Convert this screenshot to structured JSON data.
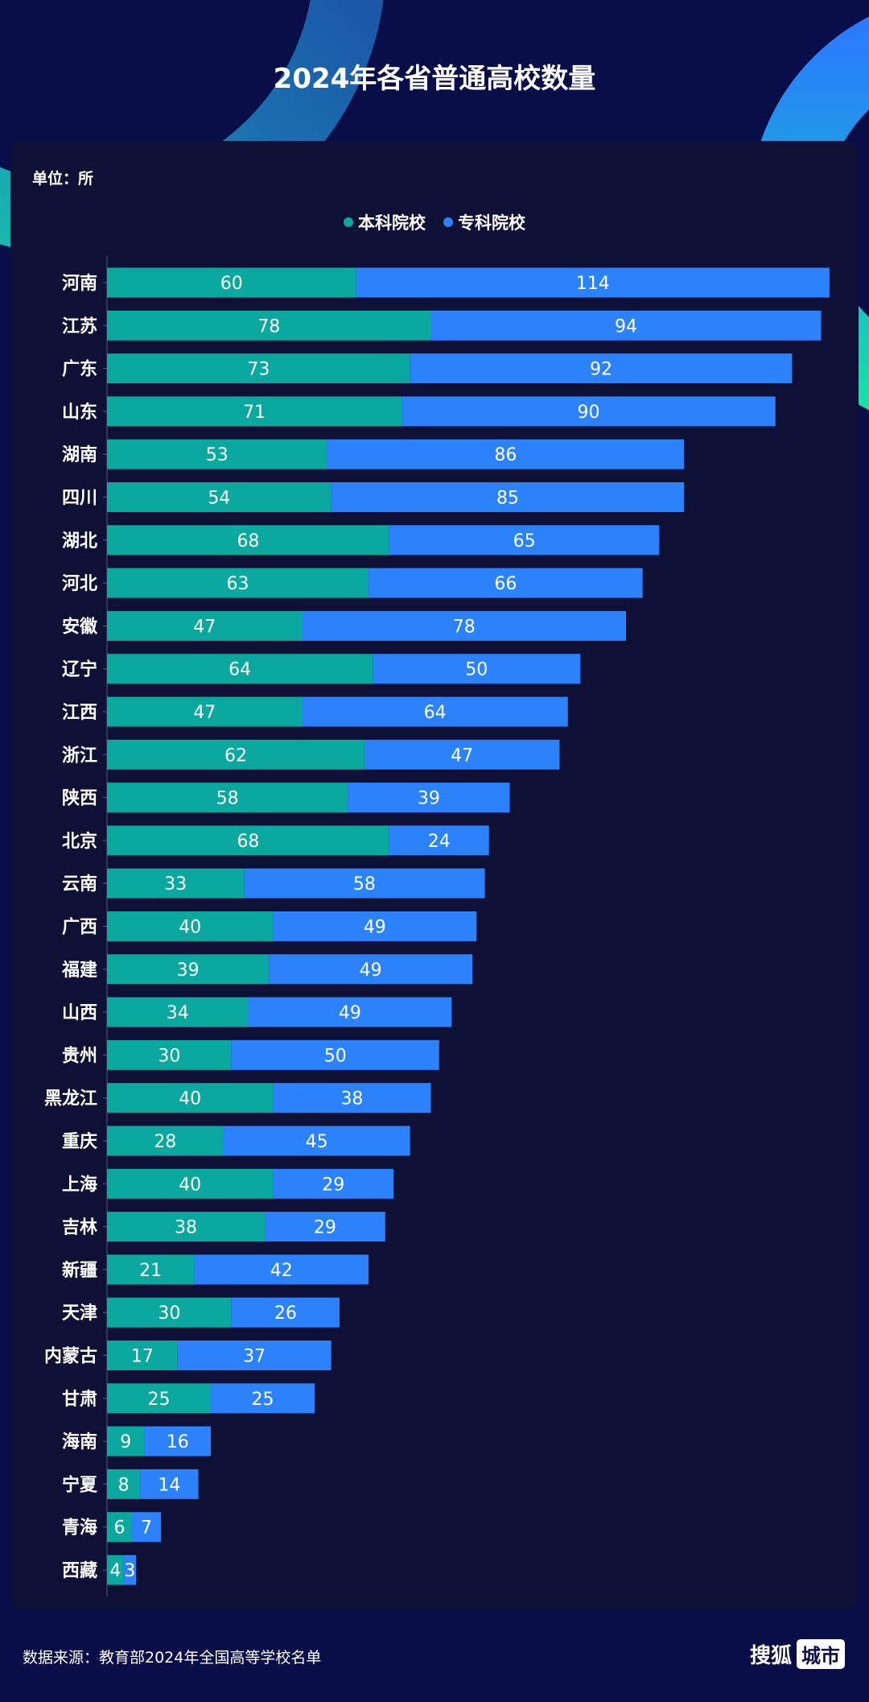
{
  "title": "2024年各省普通高校数量",
  "unit": "单位：所",
  "source": "数据来源：教育部2024年全国高等学校名单",
  "logo": {
    "main": "搜狐",
    "sub": "城市"
  },
  "colors": {
    "background": "#0a0e48",
    "panel": "#0f1036",
    "undergraduate": "#0aa89e",
    "junior_college": "#2b82fb"
  },
  "chart_data": {
    "type": "bar",
    "orientation": "horizontal",
    "stacked": true,
    "title": "2024年各省普通高校数量",
    "ylabel": "",
    "xlabel": "",
    "legend_position": "top",
    "grid": false,
    "categories": [
      "河南",
      "江苏",
      "广东",
      "山东",
      "湖南",
      "四川",
      "湖北",
      "河北",
      "安徽",
      "辽宁",
      "江西",
      "浙江",
      "陕西",
      "北京",
      "云南",
      "广西",
      "福建",
      "山西",
      "贵州",
      "黑龙江",
      "重庆",
      "上海",
      "吉林",
      "新疆",
      "天津",
      "内蒙古",
      "甘肃",
      "海南",
      "宁夏",
      "青海",
      "西藏"
    ],
    "series": [
      {
        "name": "本科院校",
        "color": "#0aa89e",
        "values": [
          60,
          78,
          73,
          71,
          53,
          54,
          68,
          63,
          47,
          64,
          47,
          62,
          58,
          68,
          33,
          40,
          39,
          34,
          30,
          40,
          28,
          40,
          38,
          21,
          30,
          17,
          25,
          9,
          8,
          6,
          4
        ]
      },
      {
        "name": "专科院校",
        "color": "#2b82fb",
        "values": [
          114,
          94,
          92,
          90,
          86,
          85,
          65,
          66,
          78,
          50,
          64,
          47,
          39,
          24,
          58,
          49,
          49,
          49,
          50,
          38,
          45,
          29,
          29,
          42,
          26,
          37,
          25,
          16,
          14,
          7,
          3
        ]
      }
    ]
  }
}
